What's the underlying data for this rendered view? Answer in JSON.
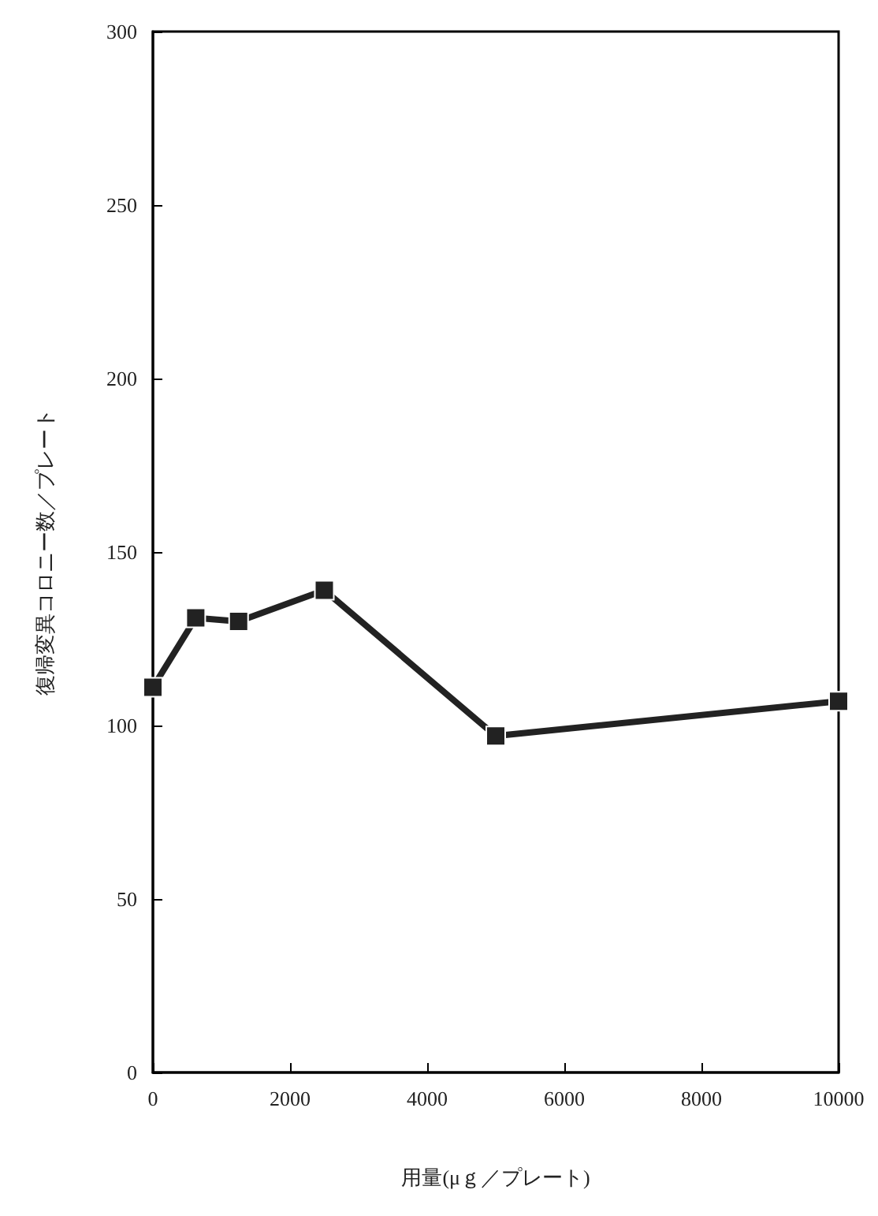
{
  "chart_data": {
    "type": "line",
    "xlabel": "用量(μｇ／プレート)",
    "ylabel": "復帰変異コロニー数／プレート",
    "x": [
      0,
      625,
      1250,
      2500,
      5000,
      10000
    ],
    "series": [
      {
        "color": "#222222",
        "values": [
          111,
          131,
          130,
          139,
          97,
          107
        ]
      }
    ],
    "xlim": [
      0,
      10000
    ],
    "xticks": [
      0,
      2000,
      4000,
      6000,
      8000,
      10000
    ],
    "ylim": [
      0,
      300
    ],
    "yticks": [
      0,
      50,
      100,
      150,
      200,
      250,
      300
    ],
    "grid": false,
    "marker": "square",
    "line_style": "solid"
  }
}
